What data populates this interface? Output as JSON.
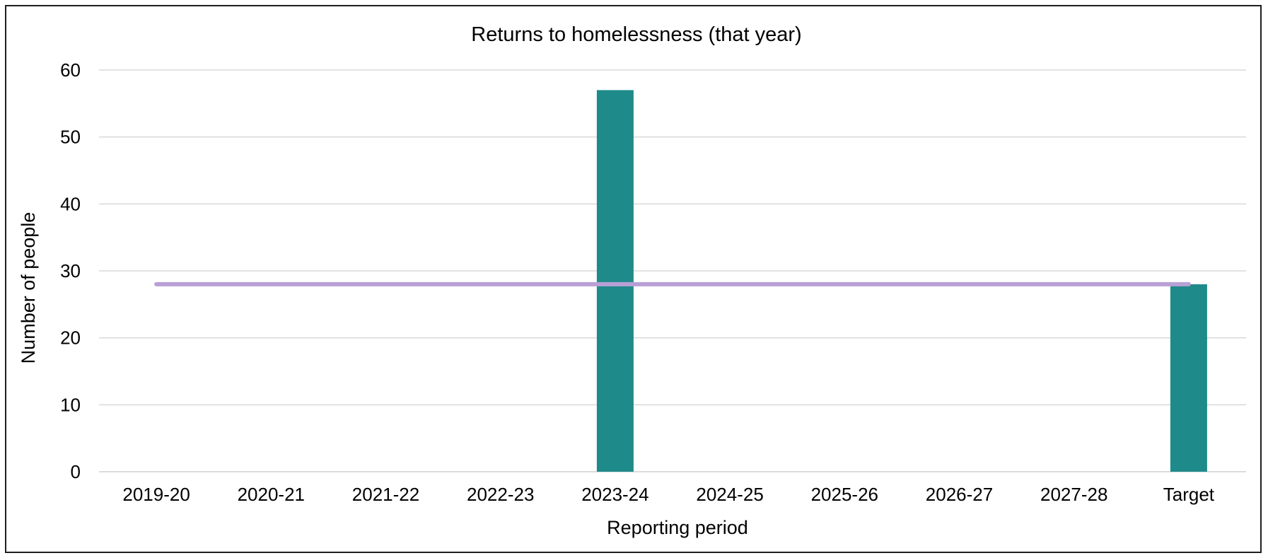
{
  "chart_data": {
    "type": "bar",
    "title": "Returns to homelessness (that year)",
    "xlabel": "Reporting period",
    "ylabel": "Number of people",
    "categories": [
      "2019-20",
      "2020-21",
      "2021-22",
      "2022-23",
      "2023-24",
      "2024-25",
      "2025-26",
      "2026-27",
      "2027-28",
      "Target"
    ],
    "series": [
      {
        "type": "bar",
        "values": [
          null,
          null,
          null,
          null,
          57,
          null,
          null,
          null,
          null,
          28
        ]
      },
      {
        "type": "line",
        "values": [
          28,
          28,
          28,
          28,
          28,
          28,
          28,
          28,
          28,
          28
        ]
      }
    ],
    "ylim": [
      0,
      60
    ],
    "yticks": [
      0,
      10,
      20,
      30,
      40,
      50,
      60
    ],
    "grid": true,
    "colors": {
      "bar": "#1f8a8a",
      "line": "#b8a0d6",
      "gridline": "#d9d9d9",
      "baseline": "#d0d0d0"
    }
  }
}
